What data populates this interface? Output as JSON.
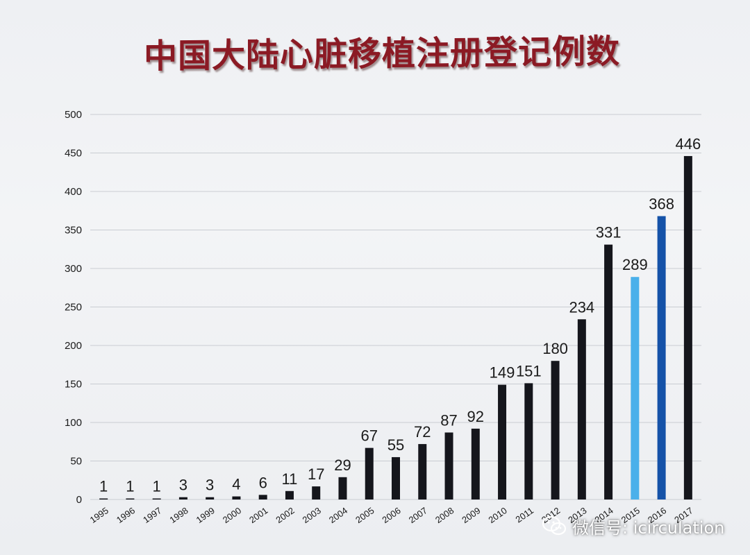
{
  "chart_data": {
    "type": "bar",
    "title": "中国大陆心脏移植注册登记例数",
    "xlabel": "",
    "ylabel": "",
    "ylim": [
      0,
      500
    ],
    "yticks": [
      0,
      50,
      100,
      150,
      200,
      250,
      300,
      350,
      400,
      450,
      500
    ],
    "grid": true,
    "categories": [
      "1995",
      "1996",
      "1997",
      "1998",
      "1999",
      "2000",
      "2001",
      "2002",
      "2003",
      "2004",
      "2005",
      "2006",
      "2007",
      "2008",
      "2009",
      "2010",
      "2011",
      "2012",
      "2013",
      "2014",
      "2015",
      "2016",
      "2017"
    ],
    "values": [
      1,
      1,
      1,
      3,
      3,
      4,
      6,
      11,
      17,
      29,
      67,
      55,
      72,
      87,
      92,
      149,
      151,
      180,
      234,
      331,
      289,
      368,
      446
    ],
    "bar_colors": [
      "#15161c",
      "#15161c",
      "#15161c",
      "#15161c",
      "#15161c",
      "#15161c",
      "#15161c",
      "#15161c",
      "#15161c",
      "#15161c",
      "#15161c",
      "#15161c",
      "#15161c",
      "#15161c",
      "#15161c",
      "#15161c",
      "#15161c",
      "#15161c",
      "#15161c",
      "#15161c",
      "#4ab0ea",
      "#1552a8",
      "#15161c"
    ]
  },
  "watermark": {
    "icon": "wechat-icon",
    "text": "微信号: icirculation"
  }
}
